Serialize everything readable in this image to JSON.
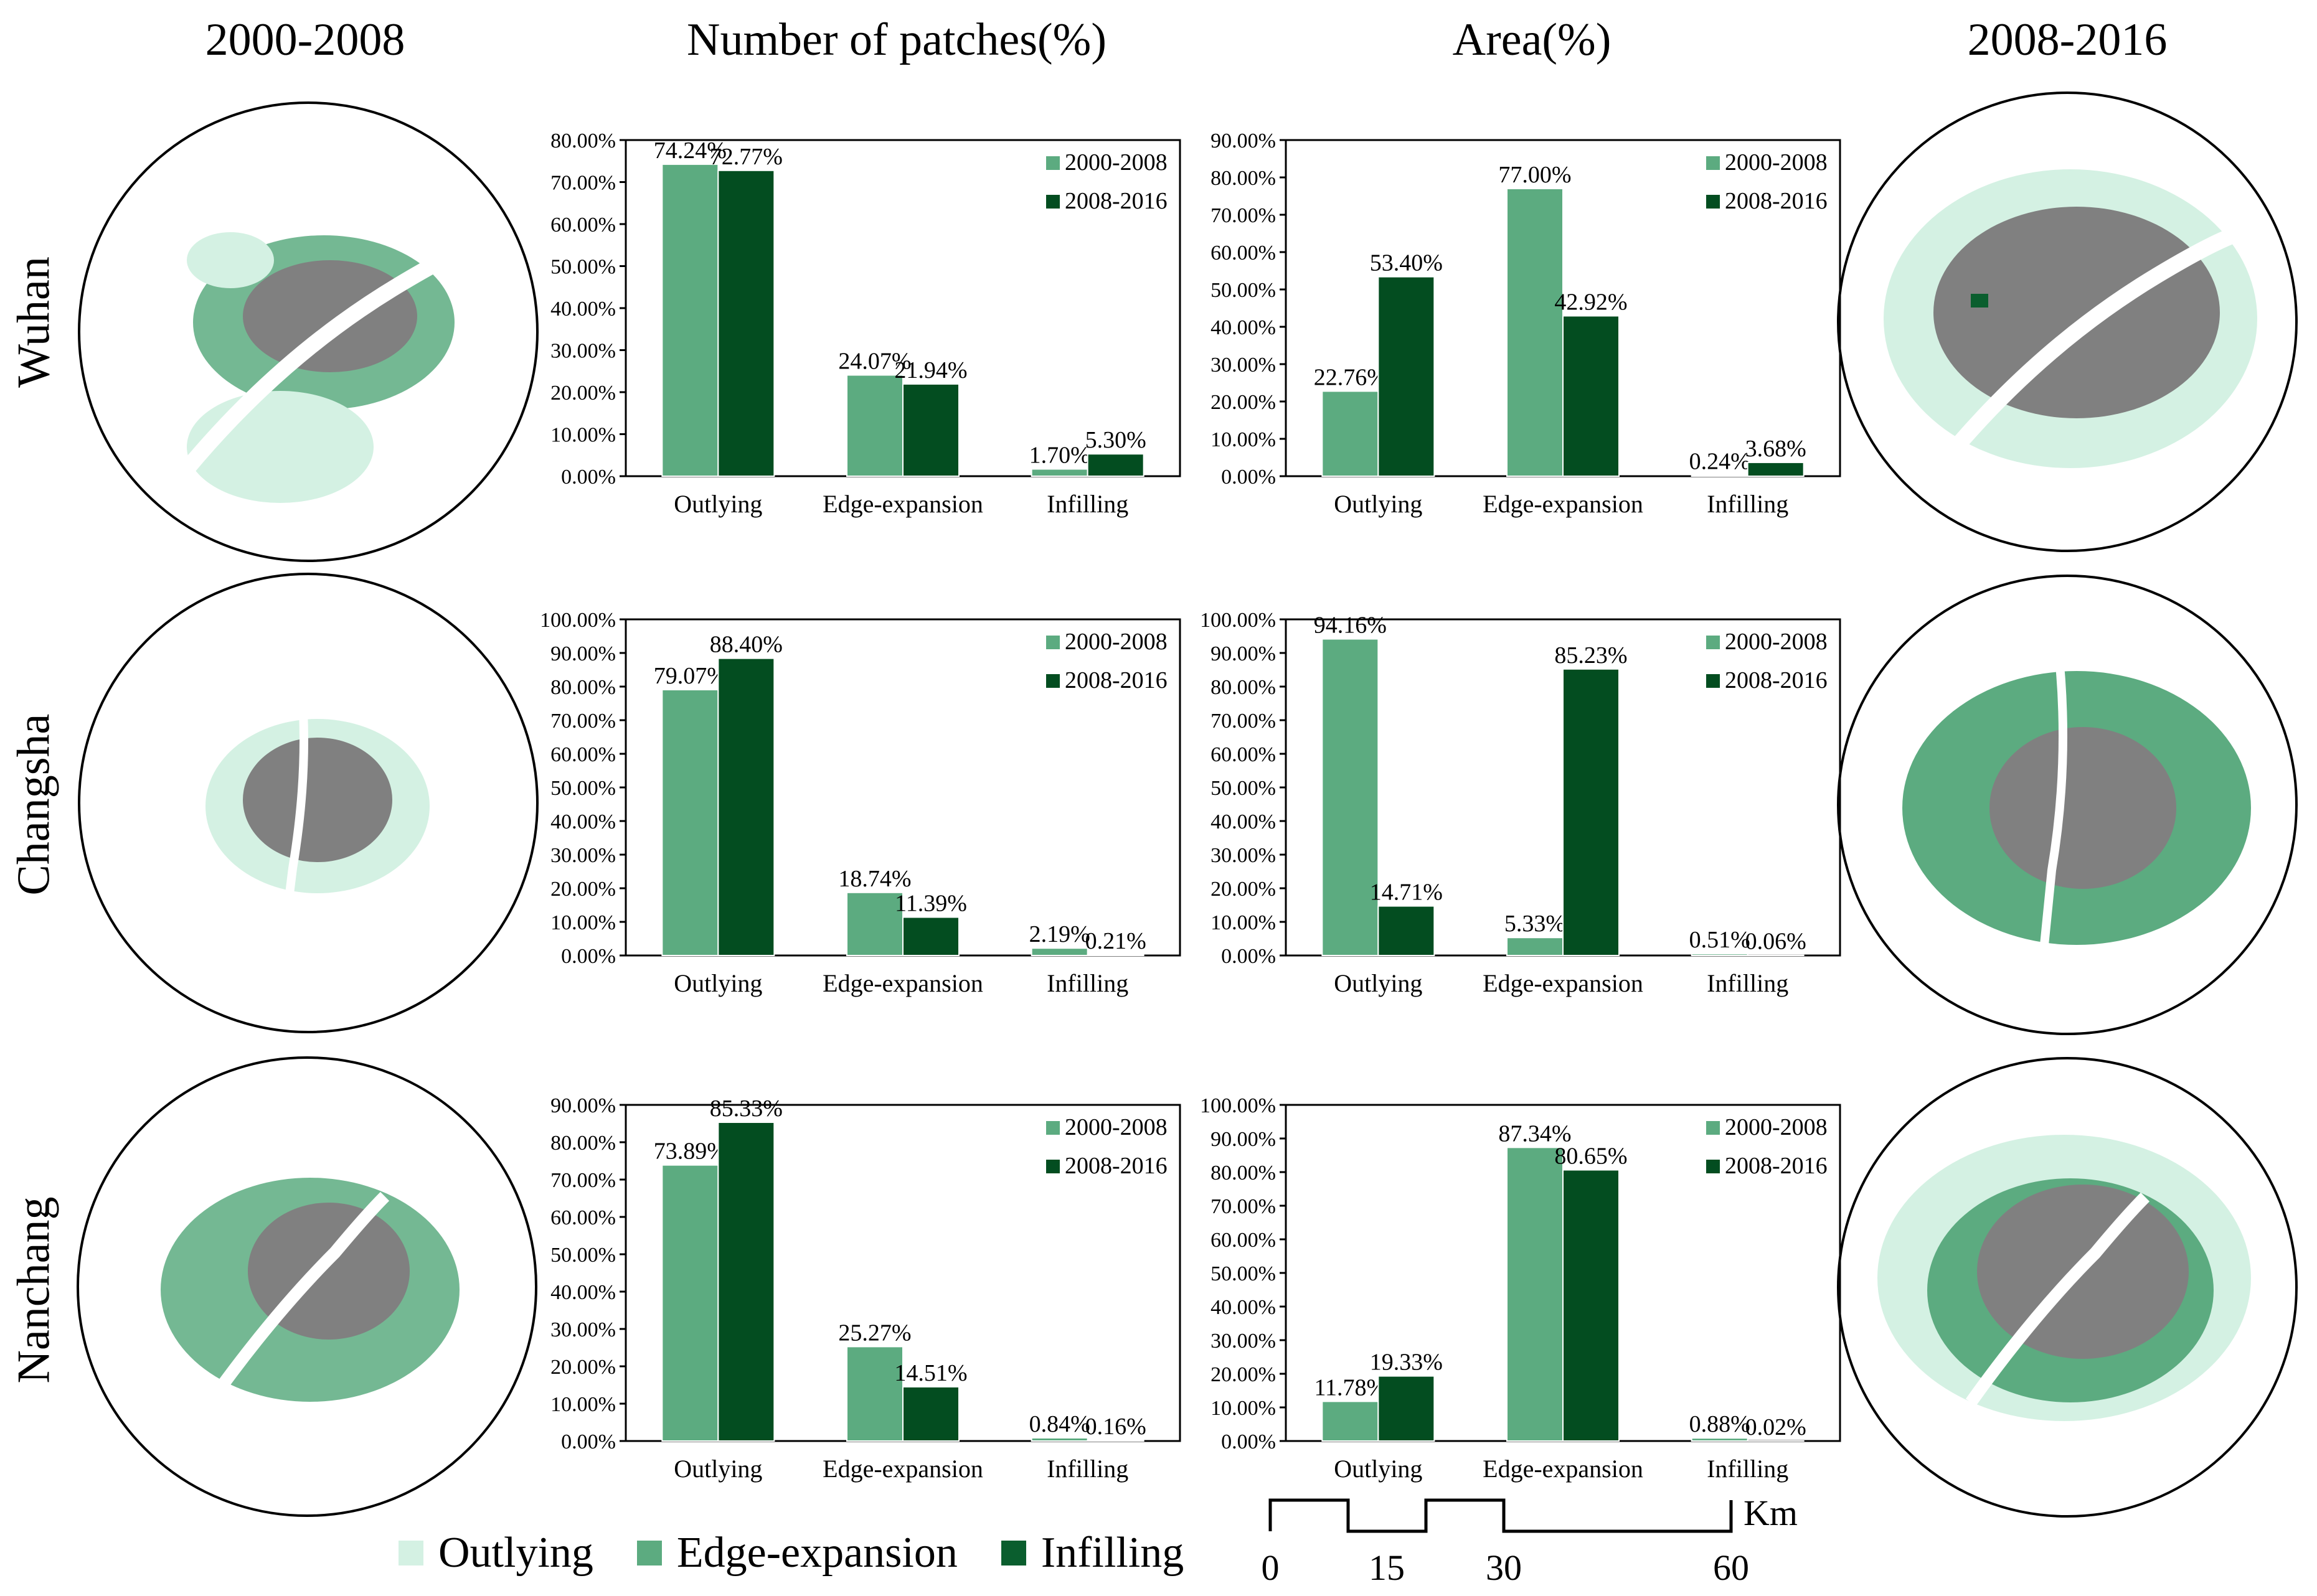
{
  "headers": {
    "col1": "2000-2008",
    "col2": "Number of patches(%)",
    "col3": "Area(%)",
    "col4": "2008-2016"
  },
  "cities": [
    "Wuhan",
    "Changsha",
    "Nanchang"
  ],
  "colors": {
    "series_2000_2008": "#5cab80",
    "series_2008_2016": "#034d20",
    "outlying": "#d4f1e3",
    "edge_expansion": "#5cab80",
    "infilling": "#0a5e2e",
    "built_up": "#808080"
  },
  "legend": {
    "items": [
      {
        "label": "Outlying",
        "color": "#d4f1e3"
      },
      {
        "label": "Edge-expansion",
        "color": "#5cab80"
      },
      {
        "label": "Infilling",
        "color": "#0a5e2e"
      }
    ]
  },
  "scalebar": {
    "ticks": [
      "0",
      "15",
      "30",
      "60"
    ],
    "unit": "Km"
  },
  "chart_data": [
    {
      "type": "bar",
      "city": "Wuhan",
      "metric": "Number of patches(%)",
      "categories": [
        "Outlying",
        "Edge-expansion",
        "Infilling"
      ],
      "series": [
        {
          "name": "2000-2008",
          "values": [
            74.24,
            24.07,
            1.7
          ],
          "labels": [
            "74.24%",
            "24.07%",
            "1.70%"
          ]
        },
        {
          "name": "2008-2016",
          "values": [
            72.77,
            21.94,
            5.3
          ],
          "labels": [
            "72.77%",
            "21.94%",
            "5.30%"
          ]
        }
      ],
      "ylim": [
        0,
        80
      ],
      "ystep": 10,
      "legend": "top-right"
    },
    {
      "type": "bar",
      "city": "Wuhan",
      "metric": "Area(%)",
      "categories": [
        "Outlying",
        "Edge-expansion",
        "Infilling"
      ],
      "series": [
        {
          "name": "2000-2008",
          "values": [
            22.76,
            77.0,
            0.24
          ],
          "labels": [
            "22.76%",
            "77.00%",
            "0.24%"
          ]
        },
        {
          "name": "2008-2016",
          "values": [
            53.4,
            42.92,
            3.68
          ],
          "labels": [
            "53.40%",
            "42.92%",
            "3.68%"
          ]
        }
      ],
      "ylim": [
        0,
        90
      ],
      "ystep": 10,
      "legend": "top-right"
    },
    {
      "type": "bar",
      "city": "Changsha",
      "metric": "Number of patches(%)",
      "categories": [
        "Outlying",
        "Edge-expansion",
        "Infilling"
      ],
      "series": [
        {
          "name": "2000-2008",
          "values": [
            79.07,
            18.74,
            2.19
          ],
          "labels": [
            "79.07%",
            "18.74%",
            "2.19%"
          ]
        },
        {
          "name": "2008-2016",
          "values": [
            88.4,
            11.39,
            0.21
          ],
          "labels": [
            "88.40%",
            "11.39%",
            "0.21%"
          ]
        }
      ],
      "ylim": [
        0,
        100
      ],
      "ystep": 10,
      "legend": "top-right"
    },
    {
      "type": "bar",
      "city": "Changsha",
      "metric": "Area(%)",
      "categories": [
        "Outlying",
        "Edge-expansion",
        "Infilling"
      ],
      "series": [
        {
          "name": "2000-2008",
          "values": [
            94.16,
            5.33,
            0.51
          ],
          "labels": [
            "94.16%",
            "5.33%",
            "0.51%"
          ]
        },
        {
          "name": "2008-2016",
          "values": [
            14.71,
            85.23,
            0.06
          ],
          "labels": [
            "14.71%",
            "85.23%",
            "0.06%"
          ]
        }
      ],
      "ylim": [
        0,
        100
      ],
      "ystep": 10,
      "legend": "top-right"
    },
    {
      "type": "bar",
      "city": "Nanchang",
      "metric": "Number of patches(%)",
      "categories": [
        "Outlying",
        "Edge-expansion",
        "Infilling"
      ],
      "series": [
        {
          "name": "2000-2008",
          "values": [
            73.89,
            25.27,
            0.84
          ],
          "labels": [
            "73.89%",
            "25.27%",
            "0.84%"
          ]
        },
        {
          "name": "2008-2016",
          "values": [
            85.33,
            14.51,
            0.16
          ],
          "labels": [
            "85.33%",
            "14.51%",
            "0.16%"
          ]
        }
      ],
      "ylim": [
        0,
        90
      ],
      "ystep": 10,
      "legend": "top-right"
    },
    {
      "type": "bar",
      "city": "Nanchang",
      "metric": "Area(%)",
      "categories": [
        "Outlying",
        "Edge-expansion",
        "Infilling"
      ],
      "series": [
        {
          "name": "2000-2008",
          "values": [
            11.78,
            87.34,
            0.88
          ],
          "labels": [
            "11.78%",
            "87.34%",
            "0.88%"
          ]
        },
        {
          "name": "2008-2016",
          "values": [
            19.33,
            80.65,
            0.02
          ],
          "labels": [
            "19.33%",
            "80.65%",
            "0.02%"
          ]
        }
      ],
      "ylim": [
        0,
        100
      ],
      "ystep": 10,
      "legend": "top-right"
    }
  ]
}
